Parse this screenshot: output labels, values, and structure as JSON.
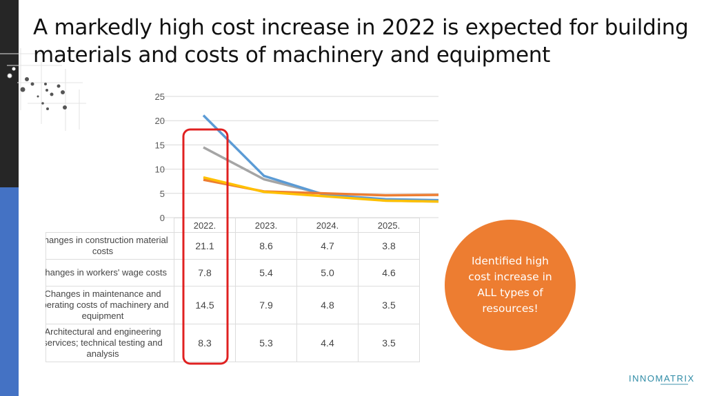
{
  "slide": {
    "title": "A markedly high cost increase in 2022 is expected for building materials and costs of machinery and equipment",
    "callout": "Identified high cost increase in ALL types of resources!",
    "logo": "INNOMATRIX",
    "colors": {
      "dark_bar": "#262626",
      "blue_bar": "#4472C4",
      "callout": "#ED7D31",
      "highlight": "#E02020"
    }
  },
  "chart_data": {
    "type": "line",
    "categories": [
      "2022.",
      "2023.",
      "2024.",
      "2025."
    ],
    "ylim": [
      0,
      25
    ],
    "yticks": [
      "0",
      "5",
      "10",
      "15",
      "20",
      "25"
    ],
    "grid": true,
    "series": [
      {
        "name": "Changes in construction material costs",
        "values": [
          21.1,
          8.6,
          4.7,
          3.8
        ],
        "color": "#5B9BD5"
      },
      {
        "name": "Changes in workers' wage costs",
        "values": [
          7.8,
          5.4,
          5.0,
          4.6
        ],
        "color": "#ED7D31"
      },
      {
        "name": "Changes in maintenance and operating costs of machinery and equipment",
        "values": [
          14.5,
          7.9,
          4.8,
          3.5
        ],
        "color": "#A5A5A5"
      },
      {
        "name": "Architectural and engineering services; technical testing and analysis",
        "values": [
          8.3,
          5.3,
          4.4,
          3.5
        ],
        "color": "#FFC000"
      }
    ],
    "table_rows": [
      {
        "label": "Changes in construction material costs",
        "values": [
          "21.1",
          "8.6",
          "4.7",
          "3.8"
        ]
      },
      {
        "label": "Changes in workers' wage costs",
        "values": [
          "7.8",
          "5.4",
          "5.0",
          "4.6"
        ]
      },
      {
        "label": "Changes in maintenance and operating costs of machinery and equipment",
        "values": [
          "14.5",
          "7.9",
          "4.8",
          "3.5"
        ]
      },
      {
        "label": "Architectural and engineering services; technical testing and analysis",
        "values": [
          "8.3",
          "5.3",
          "4.4",
          "3.5"
        ]
      }
    ]
  }
}
